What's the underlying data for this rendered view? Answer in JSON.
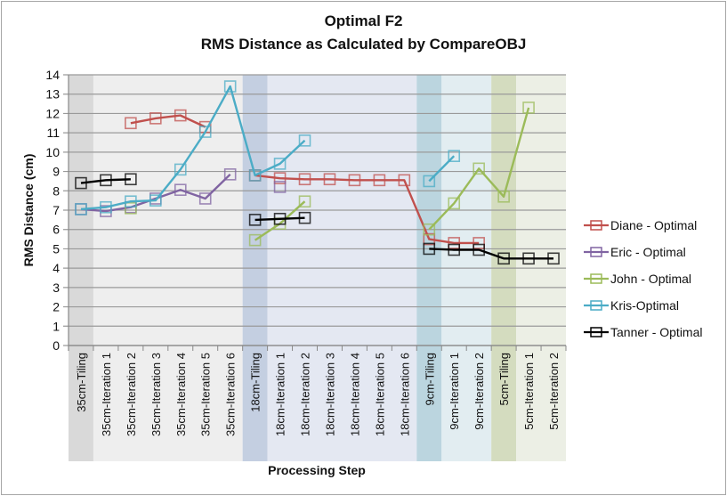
{
  "chart_data": {
    "type": "line",
    "title": "Optimal F2",
    "subtitle": "RMS Distance as Calculated by CompareOBJ",
    "xlabel": "Processing Step",
    "ylabel": "RMS Distance (cm)",
    "ylim": [
      0,
      14
    ],
    "yticks": [
      "0",
      "1",
      "2",
      "3",
      "4",
      "5",
      "6",
      "7",
      "8",
      "9",
      "10",
      "11",
      "12",
      "13",
      "14"
    ],
    "grid": true,
    "legend_position": "right",
    "categories": [
      "35cm-Tiling",
      "35cm-Iteration 1",
      "35cm-Iteration 2",
      "35cm-Iteration 3",
      "35cm-Iteration 4",
      "35cm-Iteration 5",
      "35cm-Iteration 6",
      "18cm-Tiling",
      "18cm-Iteration 1",
      "18cm-Iteration 2",
      "18cm-Iteration 3",
      "18cm-Iteration 4",
      "18cm-Iteration 5",
      "18cm-Iteration 6",
      "9cm-Tiling",
      "9cm-Iteration 1",
      "9cm-Iteration 2",
      "5cm-Tiling",
      "5cm-Iteration 1",
      "5cm-Iteration 2"
    ],
    "bands": [
      {
        "group": "35cm-Tiling",
        "color": "#D9D9D9",
        "span": [
          0,
          0
        ]
      },
      {
        "group": "35cm-Iteration",
        "color": "#EEEEEE",
        "span": [
          1,
          6
        ]
      },
      {
        "group": "18cm-Tiling",
        "color": "#C4CFE1",
        "span": [
          7,
          7
        ]
      },
      {
        "group": "18cm-Iteration",
        "color": "#E4E8F2",
        "span": [
          8,
          13
        ]
      },
      {
        "group": "9cm-Tiling",
        "color": "#BBD5DF",
        "span": [
          14,
          14
        ]
      },
      {
        "group": "9cm-Iteration",
        "color": "#E2EDF1",
        "span": [
          15,
          16
        ]
      },
      {
        "group": "5cm-Tiling",
        "color": "#D4DCBF",
        "span": [
          17,
          17
        ]
      },
      {
        "group": "5cm-Iteration",
        "color": "#ECEFE5",
        "span": [
          18,
          19
        ]
      }
    ],
    "series": [
      {
        "name": "Diane - Optimal",
        "color": "#C0504D",
        "values": [
          null,
          null,
          11.5,
          11.75,
          11.9,
          11.3,
          null,
          8.8,
          8.65,
          8.6,
          8.6,
          8.55,
          8.55,
          8.55,
          5.5,
          5.3,
          5.3,
          null,
          null,
          null
        ]
      },
      {
        "name": "Eric - Optimal",
        "color": "#8064A2",
        "values": [
          7.05,
          6.95,
          7.15,
          7.6,
          8.05,
          7.6,
          8.85,
          null,
          8.2,
          null,
          null,
          null,
          null,
          null,
          null,
          null,
          null,
          null,
          null,
          null
        ]
      },
      {
        "name": "John - Optimal",
        "color": "#9BBB59",
        "values": [
          null,
          null,
          7.1,
          null,
          null,
          null,
          null,
          5.45,
          6.3,
          7.45,
          null,
          null,
          null,
          null,
          6.0,
          7.35,
          9.15,
          7.7,
          12.3,
          null
        ]
      },
      {
        "name": "Kris-Optimal",
        "color": "#4BACC6",
        "values": [
          7.05,
          7.15,
          7.45,
          7.5,
          9.1,
          11.05,
          13.4,
          8.8,
          9.4,
          10.6,
          null,
          null,
          null,
          null,
          8.5,
          9.8,
          null,
          null,
          null,
          null
        ]
      },
      {
        "name": "Tanner - Optimal",
        "color": "#000000",
        "values": [
          8.4,
          8.55,
          8.6,
          null,
          null,
          null,
          null,
          6.5,
          6.55,
          6.6,
          null,
          null,
          null,
          null,
          5.0,
          4.95,
          4.95,
          4.5,
          4.5,
          4.5
        ]
      }
    ]
  }
}
